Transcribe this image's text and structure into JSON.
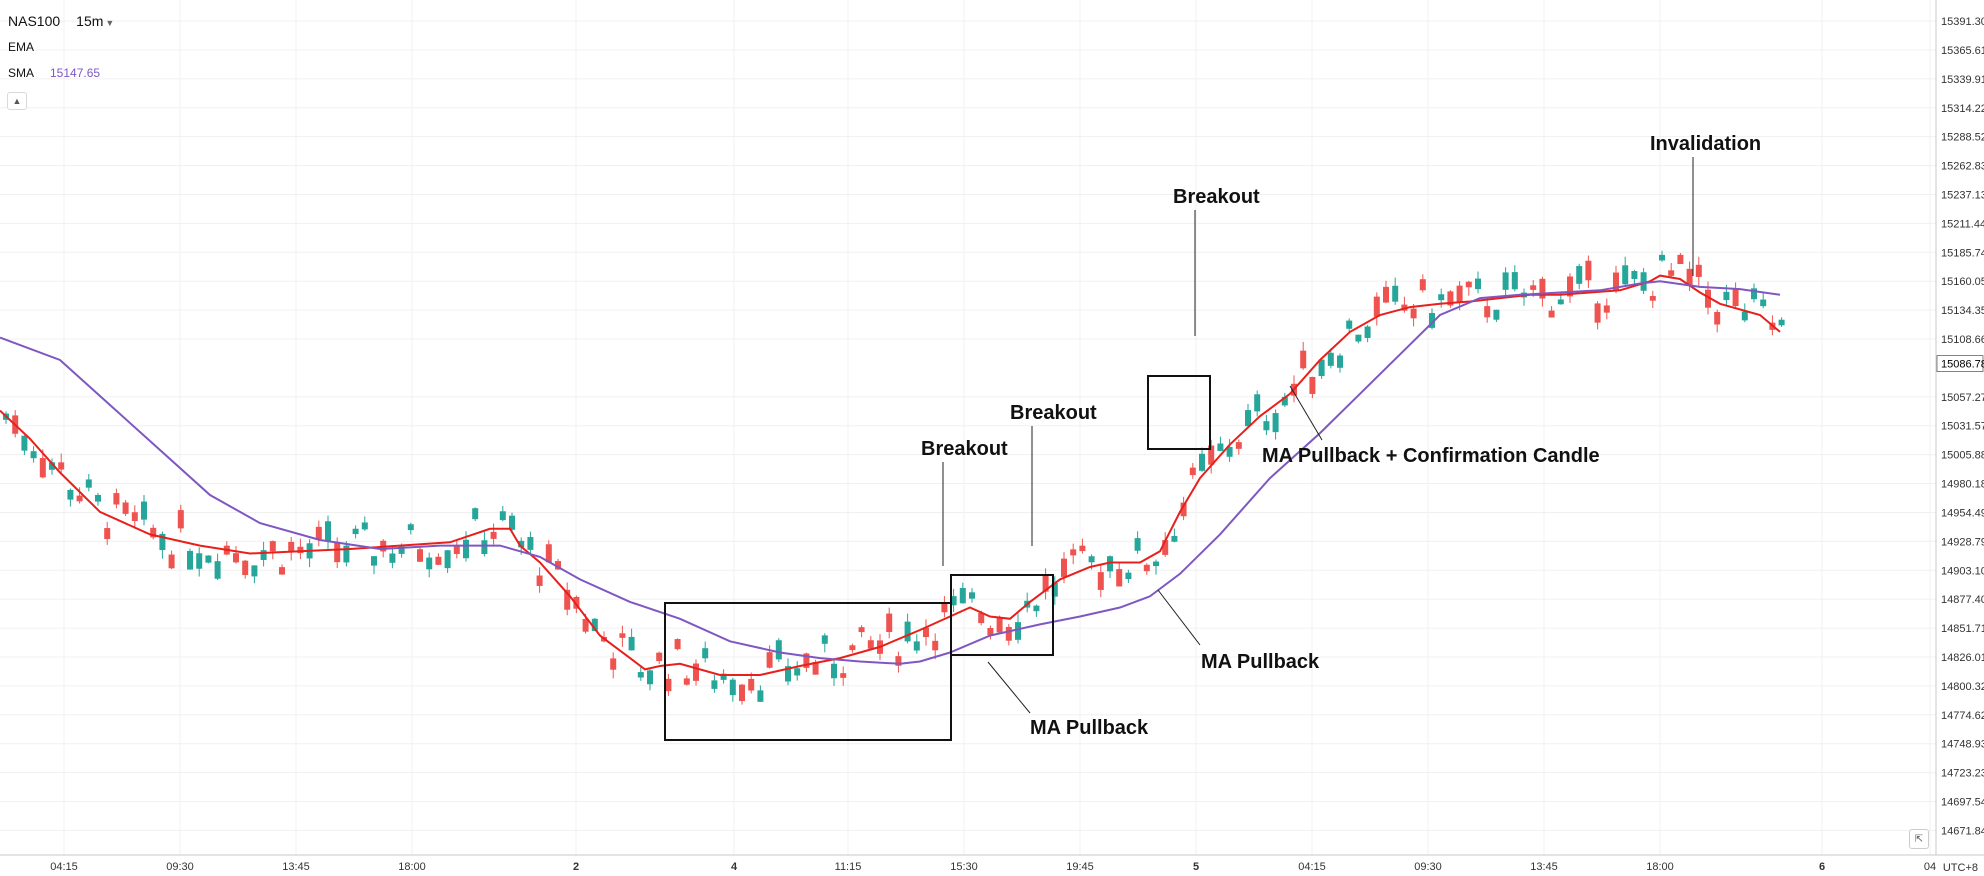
{
  "header": {
    "symbol": "NAS100",
    "timeframe": "15m",
    "indicators": [
      {
        "name": "EMA",
        "value": ""
      },
      {
        "name": "SMA",
        "value": "15147.65"
      }
    ],
    "collapse_icon": "chevron-up-icon"
  },
  "timezone_label": "UTC+8",
  "reset_icon": "reset-scale-icon",
  "colors": {
    "up": "#26a69a",
    "down": "#ef5350",
    "ema": "#e8201c",
    "sma": "#7e57c2",
    "grid": "#f0f0f0",
    "price_tag_bg": "#ffffff"
  },
  "chart_data": {
    "type": "candlestick",
    "title": "NAS100 15m",
    "ylim": [
      14650,
      15410
    ],
    "y_ticks": [
      "15391.30",
      "15365.61",
      "15339.91",
      "15314.22",
      "15288.52",
      "15262.83",
      "15237.13",
      "15211.44",
      "15185.74",
      "15160.05",
      "15134.35",
      "15108.66",
      "15057.27",
      "15031.57",
      "15005.88",
      "14980.18",
      "14954.49",
      "14928.79",
      "14903.10",
      "14877.40",
      "14851.71",
      "14826.01",
      "14800.32",
      "14774.62",
      "14748.93",
      "14723.23",
      "14697.54",
      "14671.84"
    ],
    "x_ticks": [
      "04:15",
      "09:30",
      "13:45",
      "18:00",
      "2",
      "4",
      "11:15",
      "15:30",
      "19:45",
      "5",
      "04:15",
      "09:30",
      "13:45",
      "18:00",
      "6",
      "04"
    ],
    "last_price_label": "15086.78",
    "last_price": 15086.78,
    "series": [
      {
        "name": "EMA",
        "points": [
          [
            0,
            15045
          ],
          [
            30,
            15020
          ],
          [
            60,
            14990
          ],
          [
            100,
            14955
          ],
          [
            150,
            14935
          ],
          [
            200,
            14925
          ],
          [
            250,
            14918
          ],
          [
            300,
            14920
          ],
          [
            350,
            14922
          ],
          [
            400,
            14925
          ],
          [
            450,
            14928
          ],
          [
            490,
            14940
          ],
          [
            510,
            14940
          ],
          [
            520,
            14925
          ],
          [
            540,
            14910
          ],
          [
            570,
            14880
          ],
          [
            600,
            14845
          ],
          [
            630,
            14825
          ],
          [
            645,
            14815
          ],
          [
            660,
            14818
          ],
          [
            680,
            14820
          ],
          [
            700,
            14815
          ],
          [
            720,
            14810
          ],
          [
            760,
            14810
          ],
          [
            800,
            14818
          ],
          [
            840,
            14825
          ],
          [
            880,
            14835
          ],
          [
            920,
            14850
          ],
          [
            950,
            14862
          ],
          [
            970,
            14870
          ],
          [
            990,
            14862
          ],
          [
            1010,
            14860
          ],
          [
            1030,
            14875
          ],
          [
            1060,
            14895
          ],
          [
            1090,
            14906
          ],
          [
            1110,
            14910
          ],
          [
            1140,
            14910
          ],
          [
            1160,
            14920
          ],
          [
            1180,
            14955
          ],
          [
            1200,
            14985
          ],
          [
            1230,
            15015
          ],
          [
            1260,
            15040
          ],
          [
            1290,
            15060
          ],
          [
            1320,
            15090
          ],
          [
            1350,
            15115
          ],
          [
            1380,
            15130
          ],
          [
            1410,
            15137
          ],
          [
            1440,
            15140
          ],
          [
            1470,
            15142
          ],
          [
            1500,
            15145
          ],
          [
            1530,
            15148
          ],
          [
            1560,
            15148
          ],
          [
            1590,
            15150
          ],
          [
            1620,
            15152
          ],
          [
            1650,
            15160
          ],
          [
            1660,
            15165
          ],
          [
            1680,
            15162
          ],
          [
            1700,
            15150
          ],
          [
            1720,
            15140
          ],
          [
            1760,
            15130
          ],
          [
            1780,
            15115
          ]
        ]
      },
      {
        "name": "SMA",
        "points": [
          [
            0,
            15110
          ],
          [
            60,
            15090
          ],
          [
            110,
            15050
          ],
          [
            160,
            15010
          ],
          [
            210,
            14970
          ],
          [
            260,
            14945
          ],
          [
            320,
            14930
          ],
          [
            380,
            14922
          ],
          [
            440,
            14925
          ],
          [
            500,
            14925
          ],
          [
            540,
            14915
          ],
          [
            580,
            14895
          ],
          [
            630,
            14875
          ],
          [
            680,
            14860
          ],
          [
            730,
            14840
          ],
          [
            780,
            14830
          ],
          [
            820,
            14825
          ],
          [
            860,
            14822
          ],
          [
            900,
            14820
          ],
          [
            920,
            14822
          ],
          [
            950,
            14830
          ],
          [
            990,
            14845
          ],
          [
            1040,
            14855
          ],
          [
            1080,
            14862
          ],
          [
            1120,
            14870
          ],
          [
            1150,
            14880
          ],
          [
            1180,
            14900
          ],
          [
            1220,
            14935
          ],
          [
            1270,
            14985
          ],
          [
            1320,
            15025
          ],
          [
            1360,
            15060
          ],
          [
            1400,
            15095
          ],
          [
            1440,
            15130
          ],
          [
            1480,
            15145
          ],
          [
            1520,
            15148
          ],
          [
            1560,
            15150
          ],
          [
            1600,
            15152
          ],
          [
            1640,
            15158
          ],
          [
            1660,
            15160
          ],
          [
            1700,
            15155
          ],
          [
            1740,
            15153
          ],
          [
            1780,
            15148
          ]
        ]
      }
    ],
    "annotations": [
      {
        "text": "Breakout",
        "value": 14968
      },
      {
        "text": "Breakout",
        "value": 14992
      },
      {
        "text": "Breakout",
        "value": 15232
      },
      {
        "text": "Invalidation",
        "value": 15268
      },
      {
        "text": "MA Pullback + Confirmation Candle",
        "value": 14998
      },
      {
        "text": "MA Pullback",
        "value": 14812
      },
      {
        "text": "MA Pullback",
        "value": 14763
      }
    ]
  }
}
